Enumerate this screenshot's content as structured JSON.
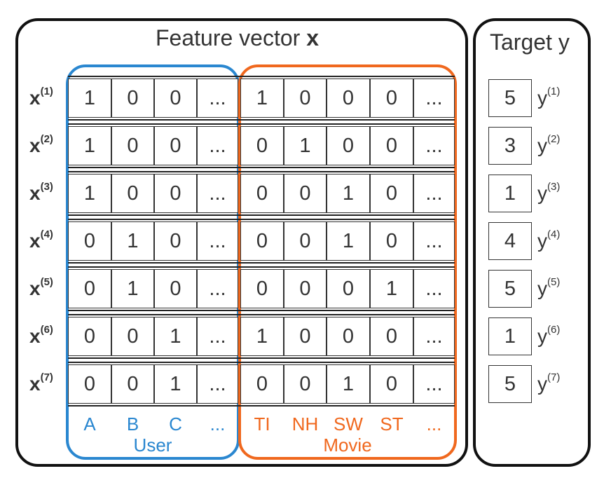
{
  "feature_title": "Feature vector",
  "feature_symbol": "x",
  "target_title": "Target y",
  "row_label_base": "x",
  "target_label_base": "y",
  "rows": [
    {
      "index": "(1)",
      "user": [
        "1",
        "0",
        "0",
        "..."
      ],
      "movie": [
        "1",
        "0",
        "0",
        "0",
        "..."
      ],
      "target": "5"
    },
    {
      "index": "(2)",
      "user": [
        "1",
        "0",
        "0",
        "..."
      ],
      "movie": [
        "0",
        "1",
        "0",
        "0",
        "..."
      ],
      "target": "3"
    },
    {
      "index": "(3)",
      "user": [
        "1",
        "0",
        "0",
        "..."
      ],
      "movie": [
        "0",
        "0",
        "1",
        "0",
        "..."
      ],
      "target": "1"
    },
    {
      "index": "(4)",
      "user": [
        "0",
        "1",
        "0",
        "..."
      ],
      "movie": [
        "0",
        "0",
        "1",
        "0",
        "..."
      ],
      "target": "4"
    },
    {
      "index": "(5)",
      "user": [
        "0",
        "1",
        "0",
        "..."
      ],
      "movie": [
        "0",
        "0",
        "0",
        "1",
        "..."
      ],
      "target": "5"
    },
    {
      "index": "(6)",
      "user": [
        "0",
        "0",
        "1",
        "..."
      ],
      "movie": [
        "1",
        "0",
        "0",
        "0",
        "..."
      ],
      "target": "1"
    },
    {
      "index": "(7)",
      "user": [
        "0",
        "0",
        "1",
        "..."
      ],
      "movie": [
        "0",
        "0",
        "1",
        "0",
        "..."
      ],
      "target": "5"
    }
  ],
  "user_columns": [
    "A",
    "B",
    "C",
    "..."
  ],
  "movie_columns": [
    "TI",
    "NH",
    "SW",
    "ST",
    "..."
  ],
  "user_group_label": "User",
  "movie_group_label": "Movie",
  "colors": {
    "user": "#2a87d0",
    "movie": "#f0681e",
    "frame": "#111111"
  }
}
